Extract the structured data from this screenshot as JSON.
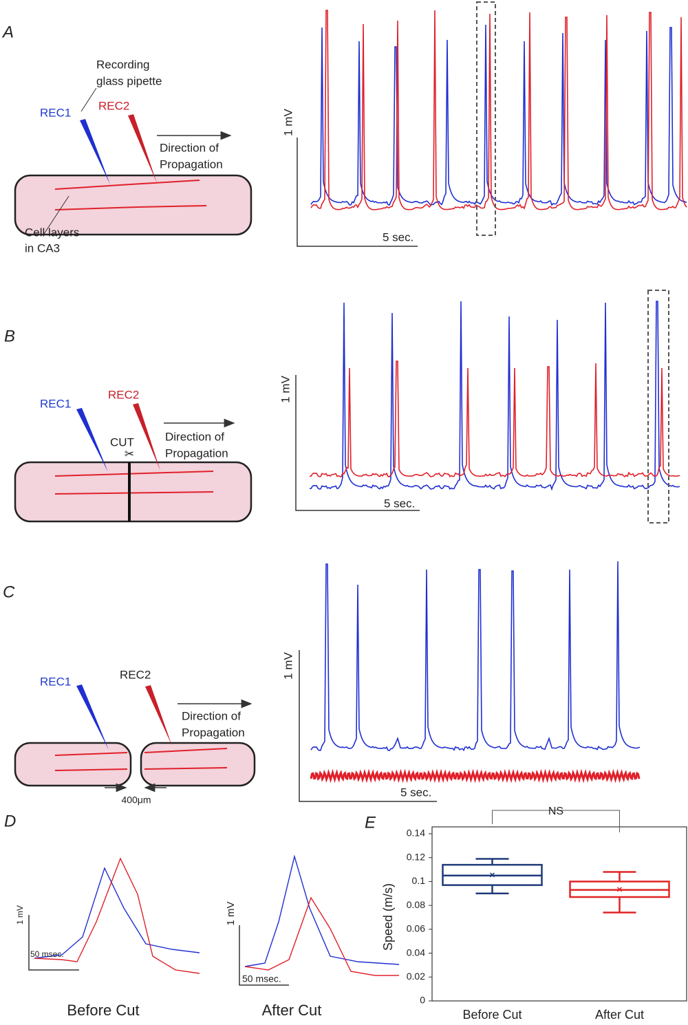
{
  "panels": {
    "a": {
      "label": "A",
      "pipette_note": [
        "Recording",
        "glass pipette"
      ],
      "rec1": "REC1",
      "rec2": "REC2",
      "direction": [
        "Direction of",
        "Propagation"
      ],
      "layers": [
        "Cell layers",
        "in CA3"
      ],
      "scale_v": "1 mV",
      "scale_t": "5 sec."
    },
    "b": {
      "label": "B",
      "rec1": "REC1",
      "rec2": "REC2",
      "cut": "CUT",
      "direction": [
        "Direction of",
        "Propagation"
      ],
      "scale_v": "1 mV",
      "scale_t": "5 sec."
    },
    "c": {
      "label": "C",
      "rec1": "REC1",
      "rec2": "REC2",
      "direction": [
        "Direction of",
        "Propagation"
      ],
      "gap": "400μm",
      "scale_v": "1 mV",
      "scale_t": "5 sec."
    },
    "d": {
      "label": "D",
      "before": {
        "scale_v": "1 mV",
        "scale_t": "50 msec.",
        "caption": "Before Cut"
      },
      "after": {
        "scale_v": "1 mV",
        "scale_t": "50 msec.",
        "caption": "After Cut"
      }
    },
    "e": {
      "label": "E"
    }
  },
  "chart_data": {
    "type": "box",
    "y_label": "Speed (m/s)",
    "annotation": "NS",
    "categories": [
      "Before Cut",
      "After Cut"
    ],
    "series": [
      {
        "name": "Before Cut",
        "color": "#1f3a7a",
        "min": 0.09,
        "q1": 0.097,
        "median": 0.105,
        "q3": 0.114,
        "max": 0.119,
        "mean": 0.105
      },
      {
        "name": "After Cut",
        "color": "#e02424",
        "min": 0.074,
        "q1": 0.087,
        "median": 0.093,
        "q3": 0.1,
        "max": 0.108,
        "mean": 0.093
      }
    ],
    "ylim": [
      0,
      0.14
    ],
    "yticks": [
      0,
      0.02,
      0.04,
      0.06,
      0.08,
      0.1,
      0.12,
      0.14
    ]
  }
}
